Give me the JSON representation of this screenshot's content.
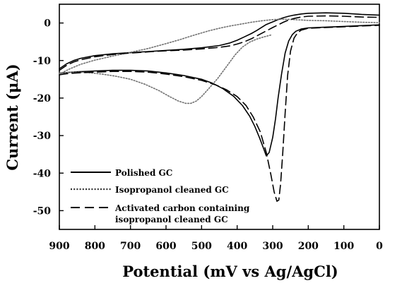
{
  "chart_data": {
    "type": "line",
    "title": "",
    "xlabel": "Potential (mV vs Ag/AgCl)",
    "ylabel": "Current (μA)",
    "xlim": [
      900,
      0
    ],
    "ylim": [
      -55,
      5
    ],
    "x_ticks": [
      900,
      800,
      700,
      600,
      500,
      400,
      300,
      200,
      100,
      0
    ],
    "y_ticks": [
      0,
      -10,
      -20,
      -30,
      -40,
      -50
    ],
    "grid": false,
    "legend_position": "bottom-left",
    "series": [
      {
        "name": "Polished GC",
        "style": "solid",
        "color": "#000000",
        "segments": [
          {
            "x": [
              900,
              880,
              860,
              840,
              800,
              750,
              700,
              650,
              600,
              550,
              500,
              450,
              420,
              400,
              380,
              360,
              345,
              330,
              318,
              300,
              285,
              270,
              255,
              240,
              220,
              200,
              150,
              100,
              50,
              0
            ],
            "y": [
              -12.2,
              -10.9,
              -10.0,
              -9.4,
              -8.7,
              -8.2,
              -7.9,
              -7.6,
              -7.3,
              -7.0,
              -6.6,
              -6.0,
              -5.3,
              -4.6,
              -3.7,
              -2.8,
              -2.0,
              -1.1,
              -0.4,
              0.3,
              0.9,
              1.4,
              1.8,
              2.1,
              2.4,
              2.6,
              2.7,
              2.6,
              2.3,
              2.1
            ]
          },
          {
            "x": [
              900,
              880,
              850,
              800,
              750,
              700,
              650,
              600,
              550,
              500,
              470,
              440,
              410,
              385,
              365,
              350,
              337,
              325,
              318,
              310,
              300,
              292,
              285,
              275,
              265,
              255,
              245,
              235,
              220,
              200,
              150,
              100,
              50,
              0
            ],
            "y": [
              -13.4,
              -13.2,
              -13.0,
              -12.8,
              -12.6,
              -12.6,
              -12.8,
              -13.3,
              -14.0,
              -15.0,
              -16.0,
              -17.5,
              -19.5,
              -22.0,
              -24.8,
              -27.6,
              -30.6,
              -33.6,
              -35.4,
              -34.5,
              -30.5,
              -25.5,
              -20.0,
              -13.5,
              -8.0,
              -4.8,
              -3.1,
              -2.2,
              -1.6,
              -1.3,
              -1.1,
              -0.9,
              -0.7,
              -0.5
            ]
          }
        ]
      },
      {
        "name": "Isopropanol cleaned GC",
        "style": "dotted",
        "color": "#707070",
        "segments": [
          {
            "x": [
              900,
              870,
              840,
              800,
              750,
              700,
              650,
              600,
              560,
              520,
              480,
              450,
              420,
              390,
              360,
              330,
              300,
              280,
              260,
              240,
              220,
              200,
              150,
              100,
              50,
              0
            ],
            "y": [
              -13.6,
              -12.2,
              -11.0,
              -9.9,
              -8.8,
              -7.8,
              -6.8,
              -5.5,
              -4.4,
              -3.2,
              -2.1,
              -1.4,
              -0.8,
              -0.3,
              0.2,
              0.6,
              0.9,
              1.0,
              1.0,
              0.9,
              0.8,
              0.7,
              0.6,
              0.4,
              0.2,
              0.1
            ]
          },
          {
            "x": [
              900,
              860,
              820,
              780,
              740,
              700,
              660,
              620,
              590,
              565,
              545,
              530,
              515,
              500,
              480,
              455,
              430,
              405,
              385,
              365,
              345,
              325,
              305
            ],
            "y": [
              -13.3,
              -13.1,
              -13.2,
              -13.6,
              -14.2,
              -15.0,
              -16.3,
              -18.0,
              -19.6,
              -20.8,
              -21.4,
              -21.4,
              -20.8,
              -19.6,
              -17.5,
              -14.8,
              -11.6,
              -8.4,
              -6.4,
              -5.1,
              -4.3,
              -3.7,
              -3.2
            ]
          }
        ]
      },
      {
        "name": "Activated carbon containing isopropanol cleaned GC",
        "style": "dashed",
        "color": "#000000",
        "segments": [
          {
            "x": [
              900,
              880,
              860,
              840,
              800,
              750,
              700,
              650,
              600,
              550,
              500,
              450,
              420,
              400,
              380,
              360,
              340,
              320,
              300,
              285,
              270,
              255,
              240,
              220,
              200,
              150,
              100,
              50,
              0
            ],
            "y": [
              -12.6,
              -11.3,
              -10.4,
              -9.8,
              -9.0,
              -8.4,
              -8.0,
              -7.7,
              -7.4,
              -7.2,
              -6.9,
              -6.5,
              -6.1,
              -5.6,
              -5.0,
              -4.2,
              -3.2,
              -2.2,
              -1.2,
              -0.5,
              0.2,
              0.8,
              1.2,
              1.6,
              1.8,
              1.9,
              1.8,
              1.6,
              1.5
            ]
          },
          {
            "x": [
              900,
              880,
              850,
              800,
              750,
              700,
              650,
              600,
              550,
              500,
              460,
              430,
              400,
              375,
              355,
              335,
              318,
              305,
              296,
              288,
              283,
              278,
              272,
              265,
              258,
              250,
              240,
              230,
              220,
              200,
              150,
              100,
              50,
              0
            ],
            "y": [
              -13.8,
              -13.5,
              -13.3,
              -13.1,
              -12.9,
              -12.9,
              -13.1,
              -13.6,
              -14.3,
              -15.3,
              -16.5,
              -17.8,
              -19.6,
              -22.0,
              -25.0,
              -29.0,
              -34.5,
              -40.5,
              -45.0,
              -47.5,
              -47.2,
              -43.0,
              -35.0,
              -24.0,
              -14.0,
              -7.5,
              -4.0,
              -2.6,
              -1.9,
              -1.4,
              -1.2,
              -1.0,
              -0.8,
              -0.6
            ]
          }
        ]
      }
    ],
    "legend": [
      "Polished GC",
      "Isopropanol cleaned GC",
      "Activated carbon containing",
      "isopropanol cleaned GC"
    ]
  }
}
